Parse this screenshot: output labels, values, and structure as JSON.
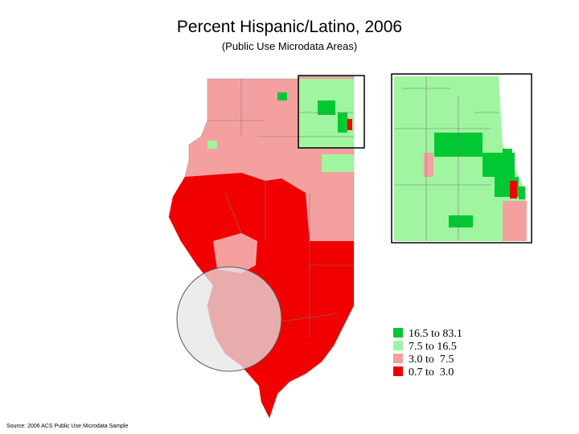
{
  "title": "Percent Hispanic/Latino, 2006",
  "subtitle": "(Public Use Microdata Areas)",
  "legend": [
    {
      "label": "16.5 to 83.1",
      "color": "#00c832"
    },
    {
      "label": "7.5 to 16.5",
      "color": "#a0f5a0"
    },
    {
      "label": "3.0 to  7.5",
      "color": "#f5a0a0"
    },
    {
      "label": "0.7 to  3.0",
      "color": "#f00000"
    }
  ],
  "source": "Source: 2006 ACS Public Use Microdata Sample"
}
